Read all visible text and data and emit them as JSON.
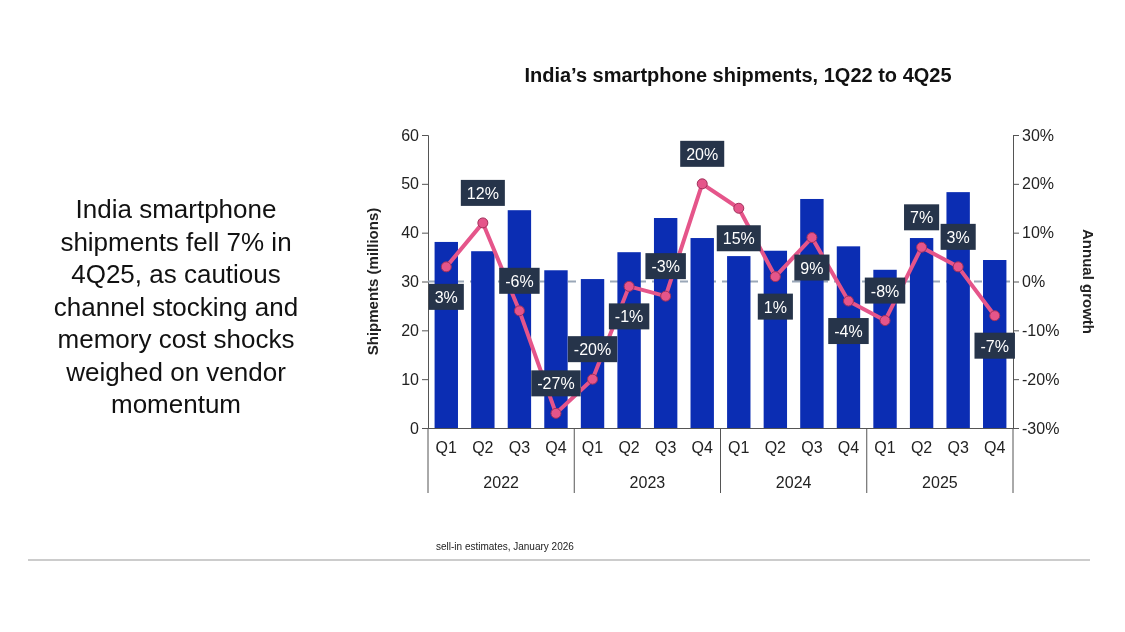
{
  "chart_data": {
    "type": "bar",
    "title": "India’s smartphone shipments, 1Q22 to 4Q25",
    "subtitle": "India smartphone shipments fell 7% in 4Q25, as cautious channel stocking and memory cost shocks weighed on vendor momentum",
    "ylabel": "Shipments (millions)",
    "y2label": "Annual growth",
    "categories": [
      "Q1",
      "Q2",
      "Q3",
      "Q4",
      "Q1",
      "Q2",
      "Q3",
      "Q4",
      "Q1",
      "Q2",
      "Q3",
      "Q4",
      "Q1",
      "Q2",
      "Q3",
      "Q4"
    ],
    "series": [
      {
        "color": "#0b2db3",
        "values": [
          38.1,
          36.2,
          44.6,
          32.3,
          30.5,
          36.0,
          43.0,
          38.9,
          35.2,
          36.3,
          46.9,
          37.2,
          32.4,
          38.9,
          48.3,
          34.4
        ]
      },
      {
        "type": "line",
        "axis": "y2",
        "color": "#e5558a",
        "marker": "circle",
        "values": [
          3,
          12,
          -6,
          -27,
          -20,
          -1,
          -3,
          20,
          15,
          1,
          9,
          -4,
          -8,
          7,
          3,
          -7
        ],
        "value_labels": [
          "3%",
          "12%",
          "-6%",
          "-27%",
          "-20%",
          "-1%",
          "-3%",
          "20%",
          "15%",
          "1%",
          "9%",
          "-4%",
          "-8%",
          "7%",
          "3%",
          "-7%"
        ]
      }
    ],
    "ylim": [
      0,
      60
    ],
    "yticks": [
      0,
      10,
      20,
      30,
      40,
      50,
      60
    ],
    "y2lim": [
      -30,
      30
    ],
    "y2ticks": [
      {
        "value": -30,
        "label": "-30%"
      },
      {
        "value": -20,
        "label": "-20%"
      },
      {
        "value": -10,
        "label": "-10%"
      },
      {
        "value": 0,
        "label": "0%"
      },
      {
        "value": 10,
        "label": "10%"
      },
      {
        "value": 20,
        "label": "20%"
      },
      {
        "value": 30,
        "label": "30%"
      }
    ],
    "ref_lines": [
      {
        "axis": "y2",
        "value": 0,
        "color": "#9aa7b8",
        "line_style": "dashed"
      }
    ],
    "annotations": [
      "2022",
      "2023",
      "2024",
      "2025",
      "sell-in estimates, January 2026"
    ]
  }
}
